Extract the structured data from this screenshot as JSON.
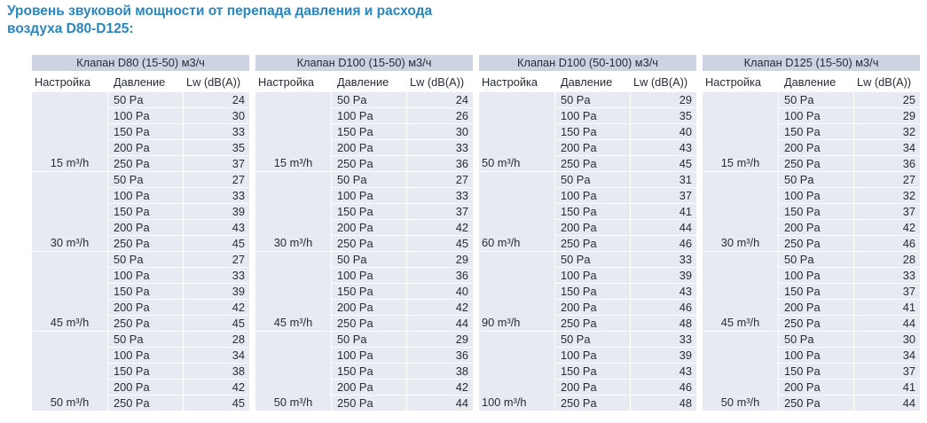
{
  "title": {
    "line1": "Уровень звуковой мощности от перепада давления и расхода",
    "line2": "воздуха D80-D125:"
  },
  "colors": {
    "title_text": "#2786c4",
    "table_header_bg": "#cdd3e0",
    "row_bg": "#e8eaf1",
    "table_text": "#272b35"
  },
  "tables": [
    {
      "title": "Клапан D80 (15-50) м3/ч",
      "columns": [
        "Настройка",
        "Давление",
        "Lw (dB(A))"
      ],
      "settings_align": "center",
      "groups": [
        {
          "setting": "15 m³/h",
          "rows": [
            {
              "pressure": "50 Pa",
              "lw": 24
            },
            {
              "pressure": "100 Pa",
              "lw": 30
            },
            {
              "pressure": "150 Pa",
              "lw": 33
            },
            {
              "pressure": "200 Pa",
              "lw": 35
            },
            {
              "pressure": "250 Pa",
              "lw": 37
            }
          ]
        },
        {
          "setting": "30 m³/h",
          "rows": [
            {
              "pressure": "50 Pa",
              "lw": 27
            },
            {
              "pressure": "100 Pa",
              "lw": 33
            },
            {
              "pressure": "150 Pa",
              "lw": 39
            },
            {
              "pressure": "200 Pa",
              "lw": 43
            },
            {
              "pressure": "250 Pa",
              "lw": 45
            }
          ]
        },
        {
          "setting": "45 m³/h",
          "rows": [
            {
              "pressure": "50 Pa",
              "lw": 27
            },
            {
              "pressure": "100 Pa",
              "lw": 33
            },
            {
              "pressure": "150 Pa",
              "lw": 39
            },
            {
              "pressure": "200 Pa",
              "lw": 42
            },
            {
              "pressure": "250 Pa",
              "lw": 45
            }
          ]
        },
        {
          "setting": "50 m³/h",
          "rows": [
            {
              "pressure": "50 Pa",
              "lw": 28
            },
            {
              "pressure": "100 Pa",
              "lw": 34
            },
            {
              "pressure": "150 Pa",
              "lw": 38
            },
            {
              "pressure": "200 Pa",
              "lw": 42
            },
            {
              "pressure": "250 Pa",
              "lw": 45
            }
          ]
        }
      ]
    },
    {
      "title": "Клапан D100 (15-50) м3/ч",
      "columns": [
        "Настройка",
        "Давление",
        "Lw (dB(A))"
      ],
      "settings_align": "center",
      "groups": [
        {
          "setting": "15 m³/h",
          "rows": [
            {
              "pressure": "50 Pa",
              "lw": 24
            },
            {
              "pressure": "100 Pa",
              "lw": 26
            },
            {
              "pressure": "150 Pa",
              "lw": 30
            },
            {
              "pressure": "200 Pa",
              "lw": 33
            },
            {
              "pressure": "250 Pa",
              "lw": 36
            }
          ]
        },
        {
          "setting": "30 m³/h",
          "rows": [
            {
              "pressure": "50 Pa",
              "lw": 27
            },
            {
              "pressure": "100 Pa",
              "lw": 33
            },
            {
              "pressure": "150 Pa",
              "lw": 37
            },
            {
              "pressure": "200 Pa",
              "lw": 42
            },
            {
              "pressure": "250 Pa",
              "lw": 45
            }
          ]
        },
        {
          "setting": "45 m³/h",
          "rows": [
            {
              "pressure": "50 Pa",
              "lw": 29
            },
            {
              "pressure": "100 Pa",
              "lw": 36
            },
            {
              "pressure": "150 Pa",
              "lw": 40
            },
            {
              "pressure": "200 Pa",
              "lw": 42
            },
            {
              "pressure": "250 Pa",
              "lw": 44
            }
          ]
        },
        {
          "setting": "50 m³/h",
          "rows": [
            {
              "pressure": "50 Pa",
              "lw": 29
            },
            {
              "pressure": "100 Pa",
              "lw": 36
            },
            {
              "pressure": "150 Pa",
              "lw": 38
            },
            {
              "pressure": "200 Pa",
              "lw": 42
            },
            {
              "pressure": "250 Pa",
              "lw": 44
            }
          ]
        }
      ]
    },
    {
      "title": "Клапан D100 (50-100) м3/ч",
      "columns": [
        "Настройка",
        "Давление",
        "Lw (dB(A))"
      ],
      "settings_align": "left",
      "groups": [
        {
          "setting": "50 m³/h",
          "rows": [
            {
              "pressure": "50 Pa",
              "lw": 29
            },
            {
              "pressure": "100 Pa",
              "lw": 35
            },
            {
              "pressure": "150 Pa",
              "lw": 40
            },
            {
              "pressure": "200 Pa",
              "lw": 43
            },
            {
              "pressure": "250 Pa",
              "lw": 45
            }
          ]
        },
        {
          "setting": "60 m³/h",
          "rows": [
            {
              "pressure": "50 Pa",
              "lw": 31
            },
            {
              "pressure": "100 Pa",
              "lw": 37
            },
            {
              "pressure": "150 Pa",
              "lw": 41
            },
            {
              "pressure": "200 Pa",
              "lw": 44
            },
            {
              "pressure": "250 Pa",
              "lw": 46
            }
          ]
        },
        {
          "setting": "90 m³/h",
          "rows": [
            {
              "pressure": "50 Pa",
              "lw": 33
            },
            {
              "pressure": "100 Pa",
              "lw": 39
            },
            {
              "pressure": "150 Pa",
              "lw": 43
            },
            {
              "pressure": "200 Pa",
              "lw": 46
            },
            {
              "pressure": "250 Pa",
              "lw": 48
            }
          ]
        },
        {
          "setting": "100 m³/h",
          "rows": [
            {
              "pressure": "50 Pa",
              "lw": 33
            },
            {
              "pressure": "100 Pa",
              "lw": 39
            },
            {
              "pressure": "150 Pa",
              "lw": 43
            },
            {
              "pressure": "200 Pa",
              "lw": 46
            },
            {
              "pressure": "250 Pa",
              "lw": 48
            }
          ]
        }
      ]
    },
    {
      "title": "Клапан D125 (15-50) м3/ч",
      "columns": [
        "Настройка",
        "Давление",
        "Lw (dB(A))"
      ],
      "settings_align": "center",
      "groups": [
        {
          "setting": "15 m³/h",
          "rows": [
            {
              "pressure": "50 Pa",
              "lw": 25
            },
            {
              "pressure": "100 Pa",
              "lw": 29
            },
            {
              "pressure": "150 Pa",
              "lw": 32
            },
            {
              "pressure": "200 Pa",
              "lw": 34
            },
            {
              "pressure": "250 Pa",
              "lw": 36
            }
          ]
        },
        {
          "setting": "30 m³/h",
          "rows": [
            {
              "pressure": "50 Pa",
              "lw": 27
            },
            {
              "pressure": "100 Pa",
              "lw": 32
            },
            {
              "pressure": "150 Pa",
              "lw": 37
            },
            {
              "pressure": "200 Pa",
              "lw": 42
            },
            {
              "pressure": "250 Pa",
              "lw": 46
            }
          ]
        },
        {
          "setting": "45 m³/h",
          "rows": [
            {
              "pressure": "50 Pa",
              "lw": 28
            },
            {
              "pressure": "100 Pa",
              "lw": 33
            },
            {
              "pressure": "150 Pa",
              "lw": 37
            },
            {
              "pressure": "200 Pa",
              "lw": 41
            },
            {
              "pressure": "250 Pa",
              "lw": 44
            }
          ]
        },
        {
          "setting": "50 m³/h",
          "rows": [
            {
              "pressure": "50 Pa",
              "lw": 30
            },
            {
              "pressure": "100 Pa",
              "lw": 34
            },
            {
              "pressure": "150 Pa",
              "lw": 37
            },
            {
              "pressure": "200 Pa",
              "lw": 41
            },
            {
              "pressure": "250 Pa",
              "lw": 44
            }
          ]
        }
      ]
    }
  ]
}
